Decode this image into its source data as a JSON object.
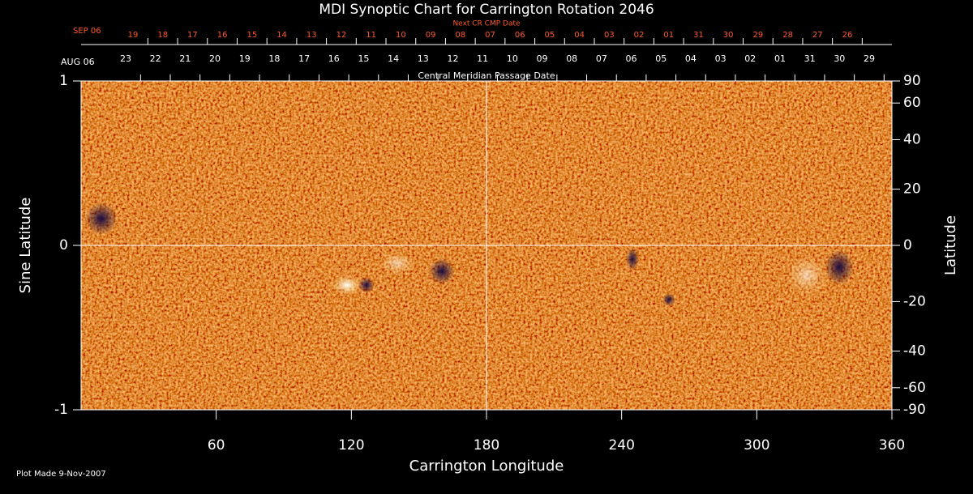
{
  "chart_data": {
    "type": "image",
    "title": "MDI Synoptic Chart for Carrington Rotation 2046",
    "top_axis_title": "Next CR CMP Date",
    "top_start_label": "SEP 06",
    "top_dates": [
      "19",
      "18",
      "17",
      "16",
      "15",
      "14",
      "13",
      "12",
      "11",
      "10",
      "09",
      "08",
      "07",
      "06",
      "05",
      "04",
      "03",
      "02",
      "01",
      "31",
      "30",
      "29",
      "28",
      "27",
      "26"
    ],
    "second_start_label": "AUG 06",
    "second_dates": [
      "23",
      "22",
      "21",
      "20",
      "19",
      "18",
      "17",
      "16",
      "15",
      "14",
      "13",
      "12",
      "11",
      "10",
      "09",
      "08",
      "07",
      "06",
      "05",
      "04",
      "03",
      "02",
      "01",
      "31",
      "30",
      "29"
    ],
    "second_axis_title": "Central Meridian Passage Date",
    "xlabel": "Carrington Longitude",
    "ylabel": "Sine Latitude",
    "y2label": "Latitude",
    "xlim": [
      0,
      360
    ],
    "xticks": [
      60,
      120,
      180,
      240,
      300,
      360
    ],
    "ylim": [
      -1,
      1
    ],
    "yticks": [
      1,
      0,
      -1
    ],
    "y2lim": [
      -90,
      90
    ],
    "y2_scale": "sine",
    "y2ticks": [
      90,
      60,
      40,
      20,
      0,
      -20,
      -40,
      -60,
      -90
    ],
    "footer": "Plot Made  9-Nov-2007"
  }
}
